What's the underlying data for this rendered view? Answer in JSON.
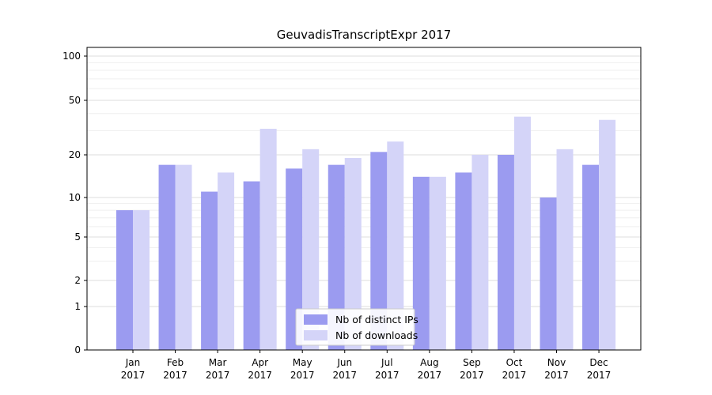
{
  "title": "GeuvadisTranscriptExpr 2017",
  "chart_data": {
    "type": "bar",
    "title": "GeuvadisTranscriptExpr 2017",
    "categories": [
      "Jan",
      "Feb",
      "Mar",
      "Apr",
      "May",
      "Jun",
      "Jul",
      "Aug",
      "Sep",
      "Oct",
      "Nov",
      "Dec"
    ],
    "year_label": "2017",
    "series": [
      {
        "name": "Nb of distinct IPs",
        "color": "#9b9bf0",
        "values": [
          8,
          17,
          11,
          13,
          16,
          17,
          21,
          14,
          15,
          20,
          10,
          17
        ]
      },
      {
        "name": "Nb of downloads",
        "color": "#d4d4f8",
        "values": [
          8,
          17,
          15,
          31,
          22,
          19,
          25,
          14,
          20,
          38,
          22,
          36
        ]
      }
    ],
    "yticks": [
      0,
      1,
      2,
      5,
      10,
      20,
      50,
      100
    ],
    "minor_gridlines": [
      3,
      4,
      6,
      7,
      8,
      9,
      30,
      40,
      60,
      70,
      80,
      90
    ],
    "ylim": [
      0,
      110
    ],
    "scale": "log-like",
    "grid": true,
    "legend_position": "lower center",
    "xlabel": "",
    "ylabel": ""
  },
  "colors": {
    "background": "#ffffff",
    "grid_major": "#dcdcdc",
    "grid_minor": "#efefef",
    "axis": "#000000",
    "legend_border": "#cccccc",
    "legend_background": "#ffffff",
    "text": "#000000"
  }
}
